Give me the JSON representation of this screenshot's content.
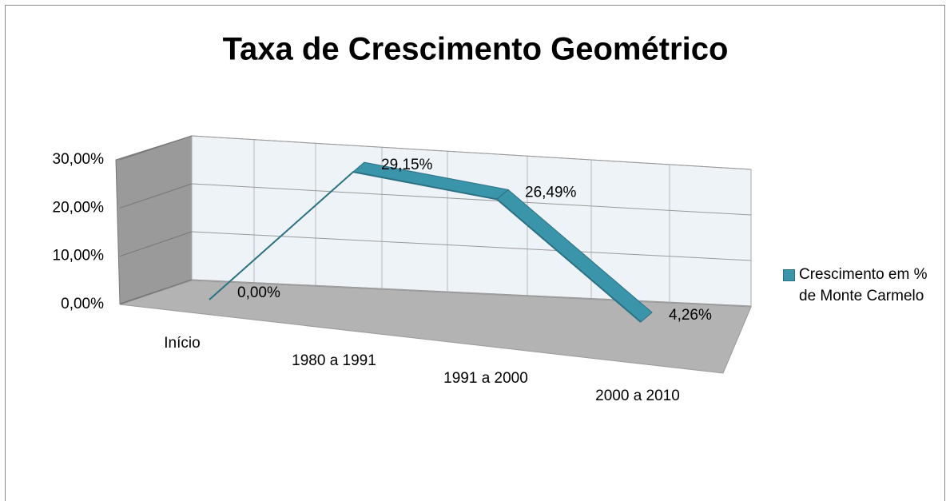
{
  "chart_data": {
    "type": "line3d",
    "title": "Taxa de Crescimento Geométrico",
    "categories": [
      "Início",
      "1980 a 1991",
      "1991 a 2000",
      "2000 a 2010"
    ],
    "series": [
      {
        "name": "Crescimento em % de Monte Carmelo",
        "color": "#3a95ab",
        "values": [
          0,
          29.15,
          26.49,
          4.26
        ],
        "value_labels": [
          "0,00%",
          "29,15%",
          "26,49%",
          "4,26%"
        ]
      }
    ],
    "ylim": [
      0,
      30
    ],
    "yticks": [
      {
        "value": 0,
        "label": "0,00%"
      },
      {
        "value": 10,
        "label": "10,00%"
      },
      {
        "value": 20,
        "label": "20,00%"
      },
      {
        "value": 30,
        "label": "30,00%"
      }
    ],
    "grid": true,
    "legend": "right"
  }
}
